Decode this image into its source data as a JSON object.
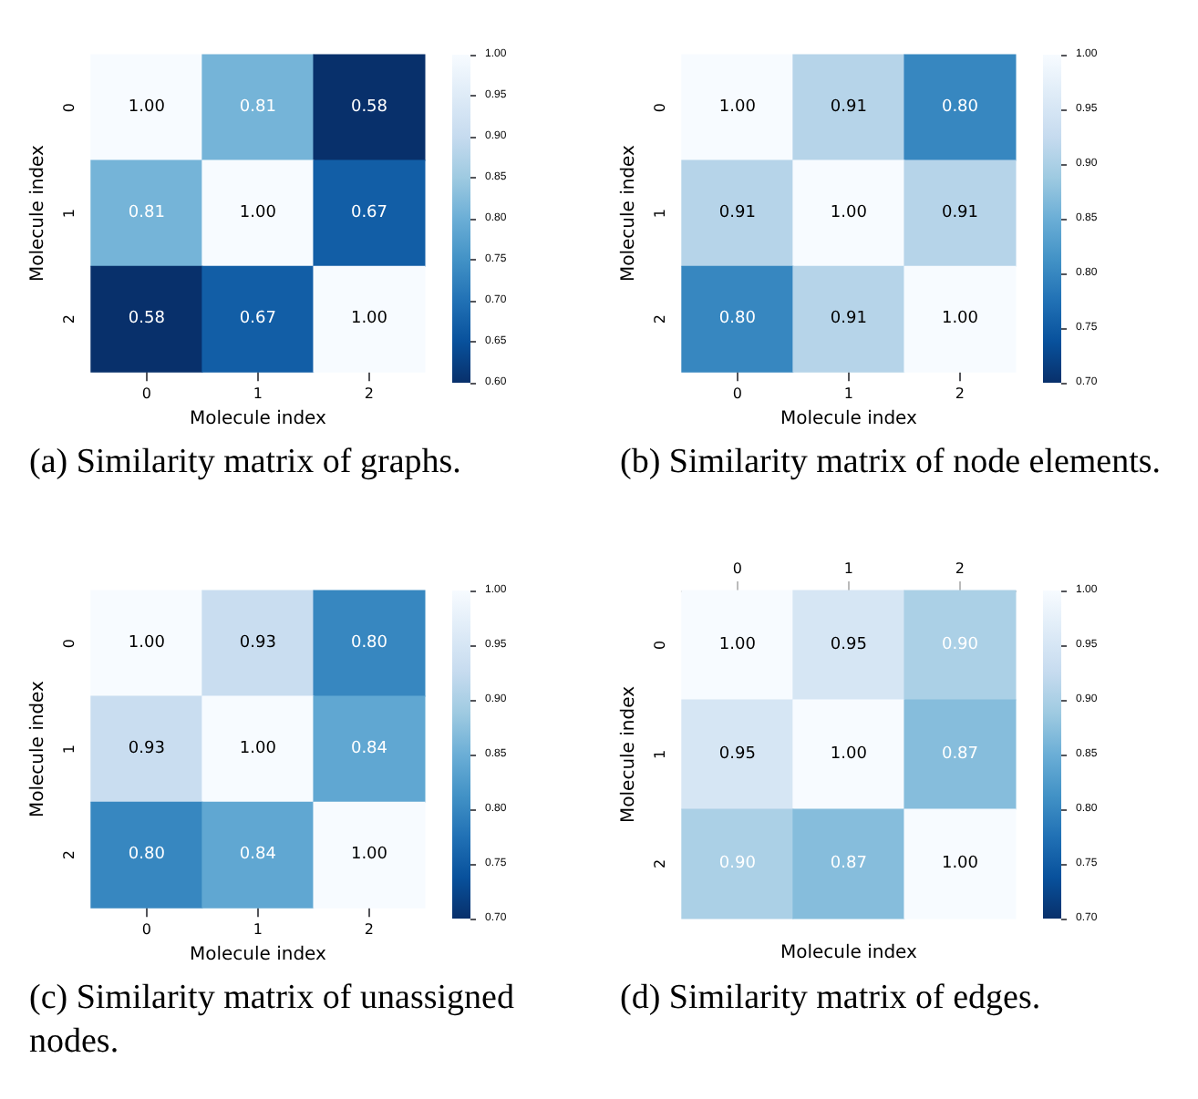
{
  "chart_data": [
    {
      "type": "heatmap",
      "title": "(a) Similarity matrix of graphs.",
      "xlabel": "Molecule index",
      "ylabel": "Molecule index",
      "categories": [
        "0",
        "1",
        "2"
      ],
      "y_categories": [
        "0",
        "1",
        "2"
      ],
      "cells": [
        [
          1.0,
          0.81,
          0.58
        ],
        [
          0.81,
          1.0,
          0.67
        ],
        [
          0.58,
          0.67,
          1.0
        ]
      ],
      "cell_labels": [
        [
          "1.00",
          "0.81",
          "0.58"
        ],
        [
          "0.81",
          "1.00",
          "0.67"
        ],
        [
          "0.58",
          "0.67",
          "1.00"
        ]
      ],
      "clim": [
        0.6,
        1.0
      ],
      "cticks": [
        {
          "value": 0.6,
          "label": "0.60"
        },
        {
          "value": 0.65,
          "label": "0.65"
        },
        {
          "value": 0.7,
          "label": "0.70"
        },
        {
          "value": 0.75,
          "label": "0.75"
        },
        {
          "value": 0.8,
          "label": "0.80"
        },
        {
          "value": 0.85,
          "label": "0.85"
        },
        {
          "value": 0.9,
          "label": "0.90"
        },
        {
          "value": 0.95,
          "label": "0.95"
        },
        {
          "value": 1.0,
          "label": "1.00"
        }
      ]
    },
    {
      "type": "heatmap",
      "title": "(b) Similarity matrix of node elements.",
      "xlabel": "Molecule index",
      "ylabel": "Molecule index",
      "categories": [
        "0",
        "1",
        "2"
      ],
      "y_categories": [
        "0",
        "1",
        "2"
      ],
      "cells": [
        [
          1.0,
          0.91,
          0.8
        ],
        [
          0.91,
          1.0,
          0.91
        ],
        [
          0.8,
          0.91,
          1.0
        ]
      ],
      "cell_labels": [
        [
          "1.00",
          "0.91",
          "0.80"
        ],
        [
          "0.91",
          "1.00",
          "0.91"
        ],
        [
          "0.80",
          "0.91",
          "1.00"
        ]
      ],
      "clim": [
        0.7,
        1.0
      ],
      "cticks": [
        {
          "value": 0.7,
          "label": "0.70"
        },
        {
          "value": 0.75,
          "label": "0.75"
        },
        {
          "value": 0.8,
          "label": "0.80"
        },
        {
          "value": 0.85,
          "label": "0.85"
        },
        {
          "value": 0.9,
          "label": "0.90"
        },
        {
          "value": 0.95,
          "label": "0.95"
        },
        {
          "value": 1.0,
          "label": "1.00"
        }
      ]
    },
    {
      "type": "heatmap",
      "title": "(c) Similarity matrix of unassigned nodes.",
      "xlabel": "Molecule index",
      "ylabel": "Molecule index",
      "categories": [
        "0",
        "1",
        "2"
      ],
      "y_categories": [
        "0",
        "1",
        "2"
      ],
      "cells": [
        [
          1.0,
          0.93,
          0.8
        ],
        [
          0.93,
          1.0,
          0.84
        ],
        [
          0.8,
          0.84,
          1.0
        ]
      ],
      "cell_labels": [
        [
          "1.00",
          "0.93",
          "0.80"
        ],
        [
          "0.93",
          "1.00",
          "0.84"
        ],
        [
          "0.80",
          "0.84",
          "1.00"
        ]
      ],
      "clim": [
        0.7,
        1.0
      ],
      "cticks": [
        {
          "value": 0.7,
          "label": "0.70"
        },
        {
          "value": 0.75,
          "label": "0.75"
        },
        {
          "value": 0.8,
          "label": "0.80"
        },
        {
          "value": 0.85,
          "label": "0.85"
        },
        {
          "value": 0.9,
          "label": "0.90"
        },
        {
          "value": 0.95,
          "label": "0.95"
        },
        {
          "value": 1.0,
          "label": "1.00"
        }
      ]
    },
    {
      "type": "heatmap",
      "title": "(d) Similarity matrix of edges.",
      "xlabel": "Molecule index",
      "ylabel": "Molecule index",
      "categories": [
        null,
        null,
        null
      ],
      "x2lim": [
        -0.5,
        2.5
      ],
      "x2ticks": [
        0,
        1,
        2
      ],
      "y_categories": [
        "0",
        "1",
        "2"
      ],
      "cells": [
        [
          1.0,
          0.95,
          0.9
        ],
        [
          0.95,
          1.0,
          0.87
        ],
        [
          0.9,
          0.87,
          1.0
        ]
      ],
      "cell_labels": [
        [
          "1.00",
          "0.95",
          "0.90"
        ],
        [
          "0.95",
          "1.00",
          "0.87"
        ],
        [
          "0.90",
          "0.87",
          "1.00"
        ]
      ],
      "clim": [
        0.7,
        1.0
      ],
      "cticks": [
        {
          "value": 0.7,
          "label": "0.70"
        },
        {
          "value": 0.75,
          "label": "0.75"
        },
        {
          "value": 0.8,
          "label": "0.80"
        },
        {
          "value": 0.85,
          "label": "0.85"
        },
        {
          "value": 0.9,
          "label": "0.90"
        },
        {
          "value": 0.95,
          "label": "0.95"
        },
        {
          "value": 1.0,
          "label": "1.00"
        }
      ]
    }
  ]
}
